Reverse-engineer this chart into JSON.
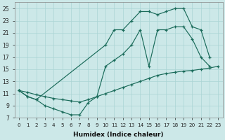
{
  "xlabel": "Humidex (Indice chaleur)",
  "background_color": "#cce8e8",
  "line_color": "#1a6b5a",
  "grid_color": "#aad4d4",
  "xlim": [
    -0.5,
    23.5
  ],
  "ylim": [
    7,
    26
  ],
  "xticks": [
    0,
    1,
    2,
    3,
    4,
    5,
    6,
    7,
    8,
    9,
    10,
    11,
    12,
    13,
    14,
    15,
    16,
    17,
    18,
    19,
    20,
    21,
    22,
    23
  ],
  "yticks": [
    7,
    9,
    11,
    13,
    15,
    17,
    19,
    21,
    23,
    25
  ],
  "line_top_x": [
    0,
    1,
    2,
    10,
    11,
    12,
    13,
    14,
    15,
    16,
    17,
    18,
    19,
    20,
    21,
    22
  ],
  "line_top_y": [
    11.5,
    10.5,
    10.0,
    19.0,
    21.5,
    21.5,
    23.0,
    24.5,
    24.5,
    24.0,
    24.5,
    25.0,
    25.0,
    22.0,
    21.5,
    17.0
  ],
  "line_diag_x": [
    0,
    1,
    2,
    3,
    4,
    5,
    6,
    7,
    8,
    9,
    10,
    11,
    12,
    13,
    14,
    15,
    16,
    17,
    18,
    19,
    20,
    21,
    22,
    23
  ],
  "line_diag_y": [
    11.5,
    11.2,
    10.8,
    10.5,
    10.2,
    10.0,
    9.8,
    9.6,
    10.0,
    10.5,
    11.0,
    11.5,
    12.0,
    12.5,
    13.0,
    13.5,
    14.0,
    14.3,
    14.5,
    14.7,
    14.8,
    15.0,
    15.2,
    15.5
  ],
  "line_mid_x": [
    0,
    1,
    2,
    3,
    4,
    5,
    6,
    7,
    8,
    9,
    10,
    11,
    12,
    13,
    14,
    15,
    16,
    17,
    18,
    19,
    20,
    21,
    22
  ],
  "line_mid_y": [
    11.5,
    10.5,
    10.0,
    9.0,
    8.5,
    8.0,
    7.5,
    7.5,
    9.5,
    10.5,
    15.5,
    16.5,
    17.5,
    19.0,
    21.5,
    15.5,
    21.5,
    21.5,
    22.0,
    22.0,
    20.0,
    17.0,
    15.5
  ]
}
